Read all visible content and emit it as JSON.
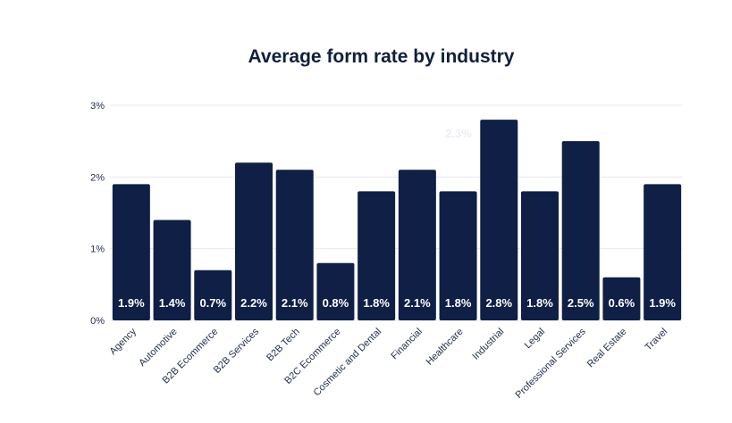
{
  "chart_data": {
    "type": "bar",
    "title": "Average form rate by industry",
    "categories": [
      "Agency",
      "Automotive",
      "B2B Ecommerce",
      "B2B Services",
      "B2B Tech",
      "B2C Ecommerce",
      "Cosmetic and Dental",
      "Financial",
      "Healthcare",
      "Industrial",
      "Legal",
      "Professional Services",
      "Real Estate",
      "Travel"
    ],
    "values": [
      1.9,
      1.4,
      0.7,
      2.2,
      2.1,
      0.8,
      1.8,
      2.1,
      1.8,
      2.8,
      1.8,
      2.5,
      0.6,
      1.9
    ],
    "data_labels": [
      "1.9%",
      "1.4%",
      "0.7%",
      "2.2%",
      "2.1%",
      "0.8%",
      "1.8%",
      "2.1%",
      "1.8%",
      "2.8%",
      "1.8%",
      "2.5%",
      "0.6%",
      "1.9%"
    ],
    "yticks": [
      0,
      1,
      2,
      3
    ],
    "ytick_labels": [
      "0%",
      "1%",
      "2%",
      "3%"
    ],
    "ylim": [
      0,
      3
    ],
    "xlabel": "",
    "ylabel": "",
    "grid": true,
    "ghost_annotation": "2.3%",
    "bar_color": "#0f1f45",
    "grid_color": "#e6e8ee"
  }
}
